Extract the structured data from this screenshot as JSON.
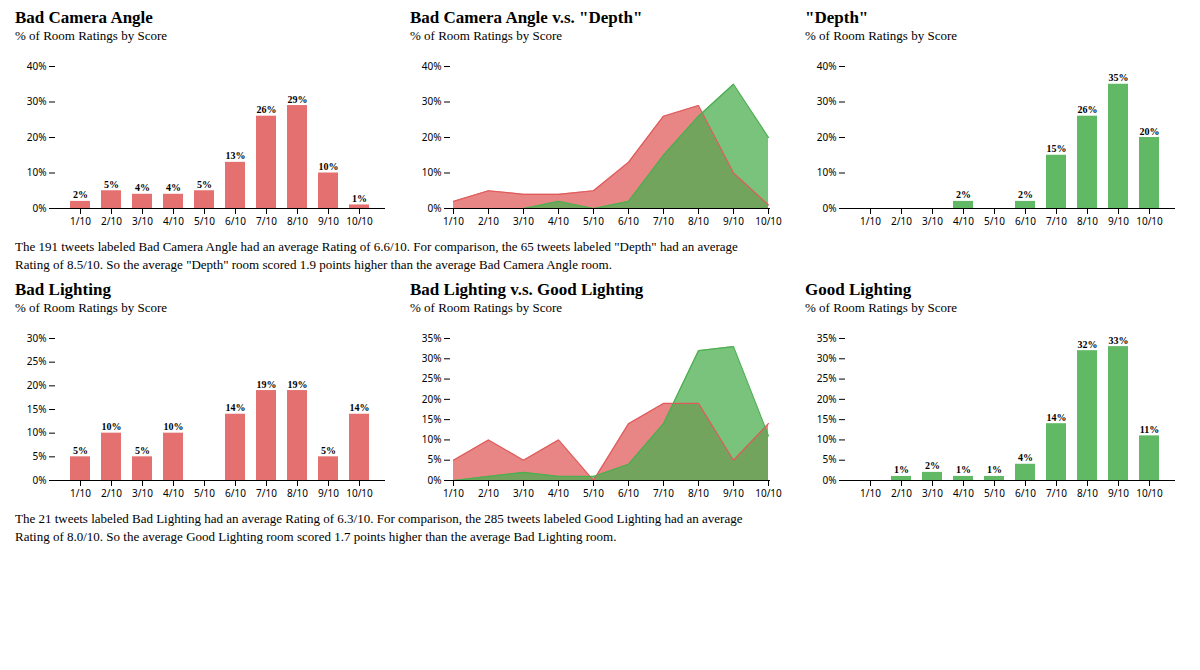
{
  "chart_data": [
    {
      "type": "bar",
      "title": "Bad Camera Angle",
      "subtitle": "% of Room Ratings by Score",
      "categories": [
        "1/10",
        "2/10",
        "3/10",
        "4/10",
        "5/10",
        "6/10",
        "7/10",
        "8/10",
        "9/10",
        "10/10"
      ],
      "values": [
        2,
        5,
        4,
        4,
        5,
        13,
        26,
        29,
        10,
        1
      ],
      "value_labels": [
        "2%",
        "5%",
        "4%",
        "4%",
        "5%",
        "13%",
        "26%",
        "29%",
        "10%",
        "1%"
      ],
      "data_labels": true,
      "color": "#e05c5c",
      "ylim": [
        0,
        40
      ],
      "yticks": [
        {
          "value": 0,
          "label": "0%"
        },
        {
          "value": 10,
          "label": "10%"
        },
        {
          "value": 20,
          "label": "20%"
        },
        {
          "value": 30,
          "label": "30%"
        },
        {
          "value": 40,
          "label": "40%"
        }
      ]
    },
    {
      "type": "area",
      "title": "Bad Camera Angle v.s. \"Depth\"",
      "subtitle": "% of Room Ratings by Score",
      "categories": [
        "1/10",
        "2/10",
        "3/10",
        "4/10",
        "5/10",
        "6/10",
        "7/10",
        "8/10",
        "9/10",
        "10/10"
      ],
      "series": [
        {
          "color": "#e05c5c",
          "values": [
            2,
            5,
            4,
            4,
            5,
            13,
            26,
            29,
            10,
            1
          ]
        },
        {
          "color": "#4caf50",
          "values": [
            0,
            0,
            0,
            2,
            0,
            2,
            15,
            26,
            35,
            20
          ]
        }
      ],
      "ylim": [
        0,
        40
      ],
      "yticks": [
        {
          "value": 0,
          "label": "0%"
        },
        {
          "value": 10,
          "label": "10%"
        },
        {
          "value": 20,
          "label": "20%"
        },
        {
          "value": 30,
          "label": "30%"
        },
        {
          "value": 40,
          "label": "40%"
        }
      ],
      "annotations": [
        "The 191 tweets labeled Bad Camera Angle had an average Rating of 6.6/10. For comparison, the 65 tweets labeled \"Depth\" had an average",
        "Rating of 8.5/10. So the average \"Depth\" room scored 1.9 points higher than the average Bad Camera Angle room."
      ]
    },
    {
      "type": "bar",
      "title": "\"Depth\"",
      "subtitle": "% of Room Ratings by Score",
      "categories": [
        "1/10",
        "2/10",
        "3/10",
        "4/10",
        "5/10",
        "6/10",
        "7/10",
        "8/10",
        "9/10",
        "10/10"
      ],
      "values": [
        0,
        0,
        0,
        2,
        0,
        2,
        15,
        26,
        35,
        20
      ],
      "value_labels": [
        null,
        null,
        null,
        "2%",
        null,
        "2%",
        "15%",
        "26%",
        "35%",
        "20%"
      ],
      "data_labels": true,
      "color": "#4caf50",
      "ylim": [
        0,
        40
      ],
      "yticks": [
        {
          "value": 0,
          "label": "0%"
        },
        {
          "value": 10,
          "label": "10%"
        },
        {
          "value": 20,
          "label": "20%"
        },
        {
          "value": 30,
          "label": "30%"
        },
        {
          "value": 40,
          "label": "40%"
        }
      ]
    },
    {
      "type": "bar",
      "title": "Bad Lighting",
      "subtitle": "% of Room Ratings by Score",
      "categories": [
        "1/10",
        "2/10",
        "3/10",
        "4/10",
        "5/10",
        "6/10",
        "7/10",
        "8/10",
        "9/10",
        "10/10"
      ],
      "values": [
        5,
        10,
        5,
        10,
        0,
        14,
        19,
        19,
        5,
        14
      ],
      "value_labels": [
        "5%",
        "10%",
        "5%",
        "10%",
        null,
        "14%",
        "19%",
        "19%",
        "5%",
        "14%"
      ],
      "data_labels": true,
      "color": "#e05c5c",
      "ylim": [
        0,
        30
      ],
      "yticks": [
        {
          "value": 0,
          "label": "0%"
        },
        {
          "value": 5,
          "label": "5%"
        },
        {
          "value": 10,
          "label": "10%"
        },
        {
          "value": 15,
          "label": "15%"
        },
        {
          "value": 20,
          "label": "20%"
        },
        {
          "value": 25,
          "label": "25%"
        },
        {
          "value": 30,
          "label": "30%"
        }
      ]
    },
    {
      "type": "area",
      "title": "Bad Lighting v.s. Good Lighting",
      "subtitle": "% of Room Ratings by Score",
      "categories": [
        "1/10",
        "2/10",
        "3/10",
        "4/10",
        "5/10",
        "6/10",
        "7/10",
        "8/10",
        "9/10",
        "10/10"
      ],
      "series": [
        {
          "color": "#e05c5c",
          "values": [
            5,
            10,
            5,
            10,
            0,
            14,
            19,
            19,
            5,
            14
          ]
        },
        {
          "color": "#4caf50",
          "values": [
            0,
            1,
            2,
            1,
            1,
            4,
            14,
            32,
            33,
            11
          ]
        }
      ],
      "ylim": [
        0,
        35
      ],
      "yticks": [
        {
          "value": 0,
          "label": "0%"
        },
        {
          "value": 5,
          "label": "5%"
        },
        {
          "value": 10,
          "label": "10%"
        },
        {
          "value": 15,
          "label": "15%"
        },
        {
          "value": 20,
          "label": "20%"
        },
        {
          "value": 25,
          "label": "25%"
        },
        {
          "value": 30,
          "label": "30%"
        },
        {
          "value": 35,
          "label": "35%"
        }
      ],
      "annotations": [
        "The 21 tweets labeled Bad Lighting had an average Rating of 6.3/10. For comparison, the 285 tweets labeled Good Lighting had an average",
        "Rating of 8.0/10. So the average Good Lighting room scored 1.7 points higher than the average Bad Lighting room."
      ]
    },
    {
      "type": "bar",
      "title": "Good Lighting",
      "subtitle": "% of Room Ratings by Score",
      "categories": [
        "1/10",
        "2/10",
        "3/10",
        "4/10",
        "5/10",
        "6/10",
        "7/10",
        "8/10",
        "9/10",
        "10/10"
      ],
      "values": [
        0,
        1,
        2,
        1,
        1,
        4,
        14,
        32,
        33,
        11
      ],
      "value_labels": [
        null,
        "1%",
        "2%",
        "1%",
        "1%",
        "4%",
        "14%",
        "32%",
        "33%",
        "11%"
      ],
      "data_labels": true,
      "color": "#4caf50",
      "ylim": [
        0,
        35
      ],
      "yticks": [
        {
          "value": 0,
          "label": "0%"
        },
        {
          "value": 5,
          "label": "5%"
        },
        {
          "value": 10,
          "label": "10%"
        },
        {
          "value": 15,
          "label": "15%"
        },
        {
          "value": 20,
          "label": "20%"
        },
        {
          "value": 25,
          "label": "25%"
        },
        {
          "value": 30,
          "label": "30%"
        },
        {
          "value": 35,
          "label": "35%"
        }
      ]
    }
  ]
}
